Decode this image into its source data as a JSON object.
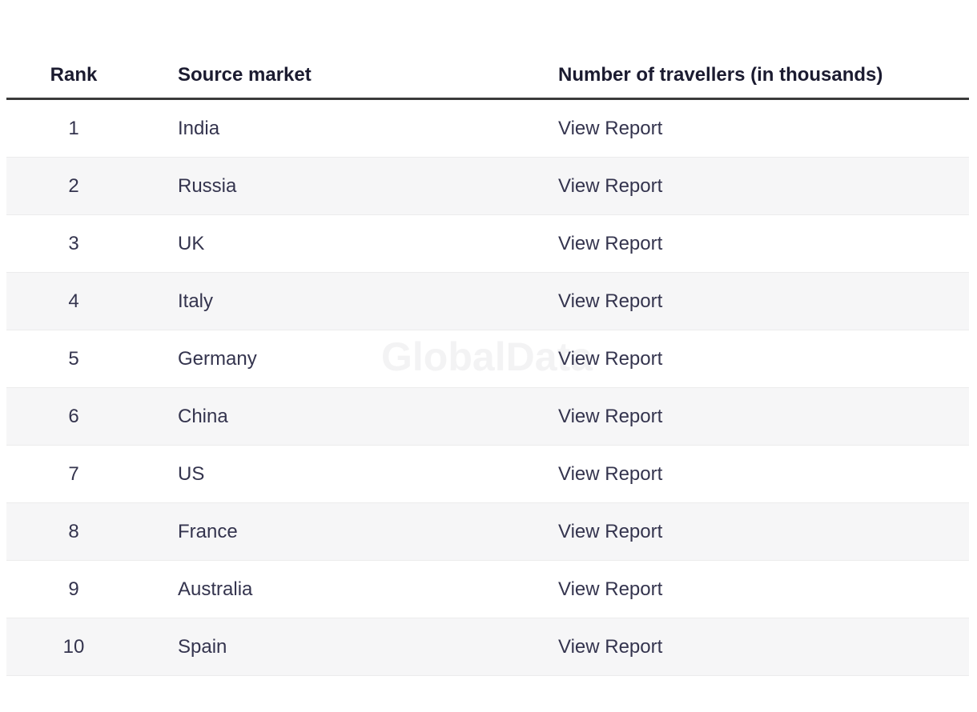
{
  "watermark": {
    "text": "GlobalData",
    "color": "#f3f3f4"
  },
  "table": {
    "headers": {
      "rank": "Rank",
      "source_market": "Source market",
      "travellers": "Number of travellers (in thousands)"
    },
    "rows": [
      {
        "rank": "1",
        "source_market": "India",
        "report": "View Report"
      },
      {
        "rank": "2",
        "source_market": "Russia",
        "report": "View Report"
      },
      {
        "rank": "3",
        "source_market": "UK",
        "report": "View Report"
      },
      {
        "rank": "4",
        "source_market": "Italy",
        "report": "View Report"
      },
      {
        "rank": "5",
        "source_market": "Germany",
        "report": "View Report"
      },
      {
        "rank": "6",
        "source_market": "China",
        "report": "View Report"
      },
      {
        "rank": "7",
        "source_market": "US",
        "report": "View Report"
      },
      {
        "rank": "8",
        "source_market": "France",
        "report": "View Report"
      },
      {
        "rank": "9",
        "source_market": "Australia",
        "report": "View Report"
      },
      {
        "rank": "10",
        "source_market": "Spain",
        "report": "View Report"
      }
    ],
    "colors": {
      "header_text": "#1b1b30",
      "body_text": "#34344e",
      "stripe": "#f6f6f7",
      "separator": "#ececec",
      "header_rule": "#3a3a3a"
    }
  }
}
